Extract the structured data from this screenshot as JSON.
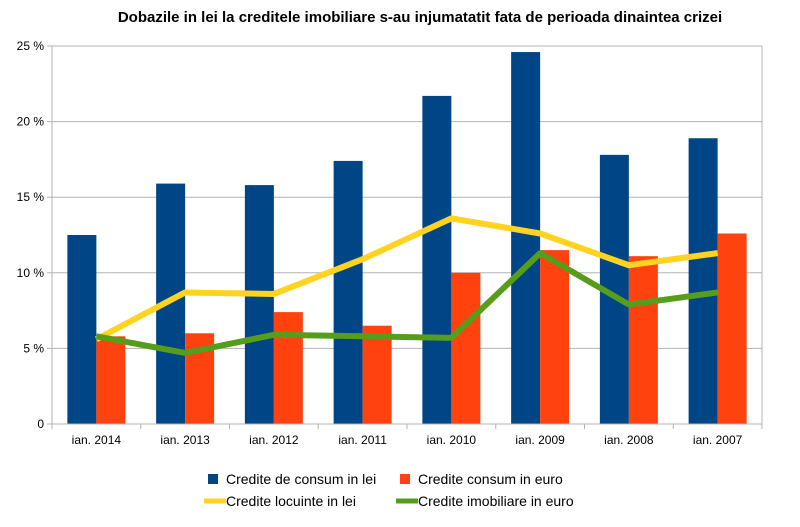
{
  "chart_data": {
    "type": "bar",
    "title": "Dobazile in lei la creditele imobiliare s-au injumatatit fata de perioada dinaintea crizei",
    "xlabel": "",
    "ylabel": "",
    "ylim": [
      0,
      25
    ],
    "y_ticks": [
      {
        "value": 0,
        "label": "0"
      },
      {
        "value": 5,
        "label": "5 %"
      },
      {
        "value": 10,
        "label": "10 %"
      },
      {
        "value": 15,
        "label": "15 %"
      },
      {
        "value": 20,
        "label": "20 %"
      },
      {
        "value": 25,
        "label": "25  %"
      }
    ],
    "grid": true,
    "legend_position": "bottom",
    "categories": [
      "ian. 2014",
      "ian. 2013",
      "ian. 2012",
      "ian. 2011",
      "ian. 2010",
      "ian. 2009",
      "ian. 2008",
      "ian. 2007"
    ],
    "series": [
      {
        "name": "Credite de consum in lei",
        "kind": "bar",
        "color": "#004586",
        "values": [
          12.5,
          15.9,
          15.8,
          17.4,
          21.7,
          24.6,
          17.8,
          18.9
        ]
      },
      {
        "name": "Credite consum in euro",
        "kind": "bar",
        "color": "#ff420e",
        "values": [
          5.8,
          6.0,
          7.4,
          6.5,
          10.0,
          11.5,
          11.1,
          12.6
        ]
      },
      {
        "name": "Credite locuinte in lei",
        "kind": "line",
        "color": "#ffd320",
        "values": [
          5.6,
          8.7,
          8.6,
          10.9,
          13.6,
          12.6,
          10.5,
          11.3
        ]
      },
      {
        "name": "Credite imobiliare in euro",
        "kind": "line",
        "color": "#579d1c",
        "values": [
          5.8,
          4.7,
          5.9,
          5.8,
          5.7,
          11.3,
          7.9,
          8.7
        ]
      }
    ]
  }
}
